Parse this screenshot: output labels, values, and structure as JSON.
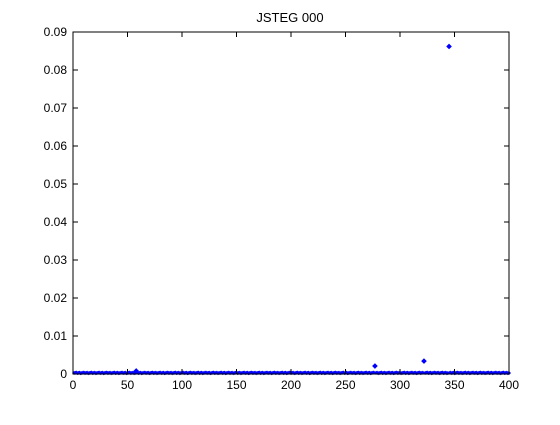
{
  "chart_data": {
    "type": "scatter",
    "title": "JSTEG 000",
    "xlabel": "",
    "ylabel": "",
    "xlim": [
      0,
      400
    ],
    "ylim": [
      0,
      0.09
    ],
    "x_ticks": [
      0,
      50,
      100,
      150,
      200,
      250,
      300,
      350,
      400
    ],
    "y_ticks": [
      0,
      0.01,
      0.02,
      0.03,
      0.04,
      0.05,
      0.06,
      0.07,
      0.08,
      0.09
    ],
    "y_tick_labels": [
      "0",
      "0.01",
      "0.02",
      "0.03",
      "0.04",
      "0.05",
      "0.06",
      "0.07",
      "0.08",
      "0.09"
    ],
    "grid": false,
    "marker_color": "#0000ff",
    "baseline_series": {
      "x_start": 1,
      "x_end": 400,
      "x_step": 1,
      "y_approx": 0.0002,
      "note_values": "near-zero values for all x not listed in outliers"
    },
    "outliers": [
      {
        "x": 58,
        "y": 0.0008
      },
      {
        "x": 277,
        "y": 0.0021
      },
      {
        "x": 322,
        "y": 0.0034
      },
      {
        "x": 345,
        "y": 0.0862
      }
    ]
  }
}
